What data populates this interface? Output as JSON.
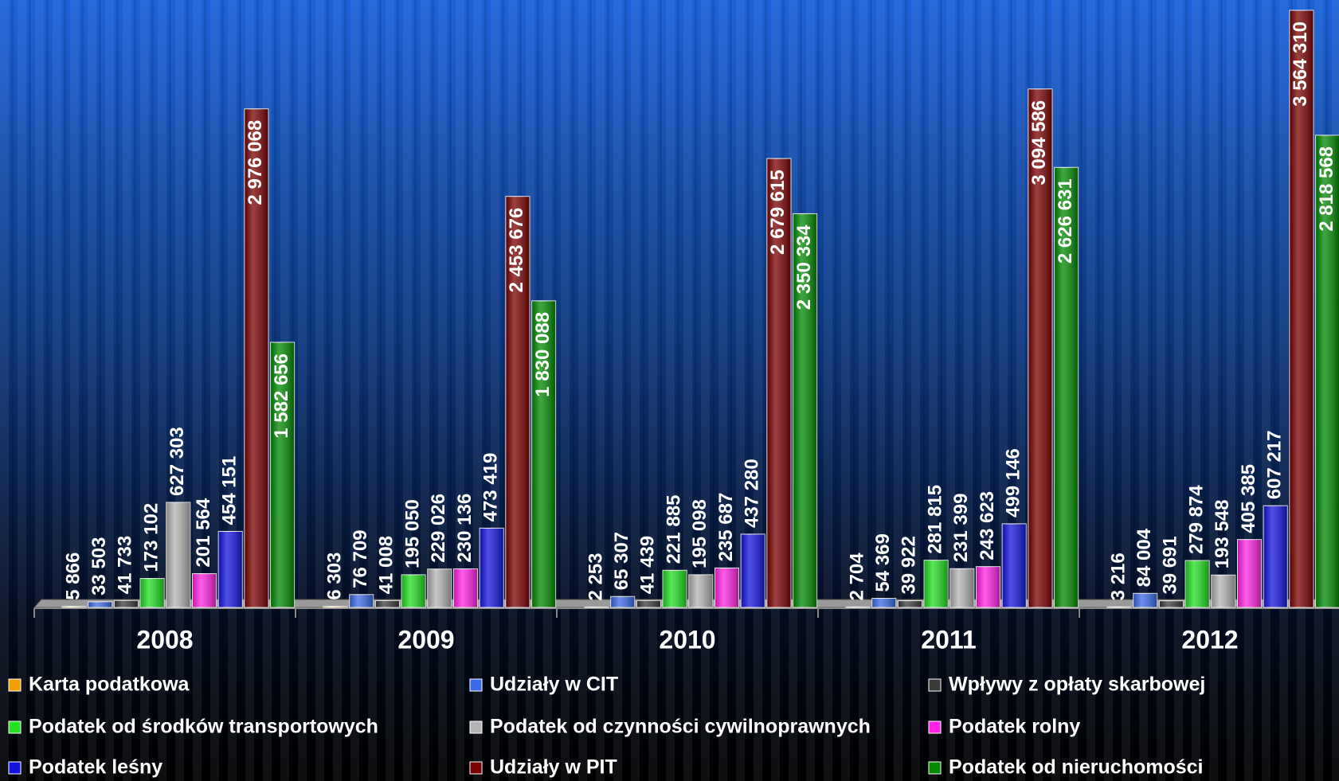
{
  "chart_data": {
    "type": "bar",
    "categories": [
      "2008",
      "2009",
      "2010",
      "2011",
      "2012"
    ],
    "series": [
      {
        "name": "Karta podatkowa",
        "color": "#f0a000",
        "values": [
          5866,
          6303,
          2253,
          2704,
          3216
        ],
        "value_labels": [
          "5 866",
          "6 303",
          "2 253",
          "2 704",
          "3 216"
        ]
      },
      {
        "name": "Udziały w CIT",
        "color": "#3a6ae8",
        "values": [
          33503,
          76709,
          65307,
          54369,
          84004
        ],
        "value_labels": [
          "33 503",
          "76 709",
          "65 307",
          "54 369",
          "84 004"
        ]
      },
      {
        "name": "Wpływy z opłaty skarbowej",
        "color": "#3a3a3a",
        "values": [
          41733,
          41008,
          41439,
          39922,
          39691
        ],
        "value_labels": [
          "41 733",
          "41 008",
          "41 439",
          "39 922",
          "39 691"
        ]
      },
      {
        "name": "Podatek od środków transportowych",
        "color": "#22e022",
        "values": [
          173102,
          195050,
          221885,
          281815,
          279874
        ],
        "value_labels": [
          "173 102",
          "195 050",
          "221 885",
          "281 815",
          "279 874"
        ]
      },
      {
        "name": "Podatek od czynności cywilnoprawnych",
        "color": "#b4b4b4",
        "values": [
          627303,
          229026,
          195098,
          231399,
          193548
        ],
        "value_labels": [
          "627 303",
          "229 026",
          "195 098",
          "231 399",
          "193 548"
        ]
      },
      {
        "name": "Podatek rolny",
        "color": "#ff22e4",
        "values": [
          201564,
          230136,
          235687,
          243623,
          405385
        ],
        "value_labels": [
          "201 564",
          "230 136",
          "235 687",
          "243 623",
          "405 385"
        ]
      },
      {
        "name": "Podatek leśny",
        "color": "#1414e0",
        "values": [
          454151,
          473419,
          437280,
          499146,
          607217
        ],
        "value_labels": [
          "454 151",
          "473 419",
          "437 280",
          "499 146",
          "607 217"
        ]
      },
      {
        "name": "Udziały w PIT",
        "color": "#7a0000",
        "values": [
          2976068,
          2453676,
          2679615,
          3094586,
          3564310
        ],
        "value_labels": [
          "2 976 068",
          "2 453 676",
          "2 679 615",
          "3 094 586",
          "3 564 310"
        ]
      },
      {
        "name": "Podatek od nieruchomości",
        "color": "#008a00",
        "values": [
          1582656,
          1830088,
          2350334,
          2626631,
          2818568
        ],
        "value_labels": [
          "1 582 656",
          "1 830 088",
          "2 350 334",
          "2 626 631",
          "2 818 568"
        ]
      }
    ]
  }
}
